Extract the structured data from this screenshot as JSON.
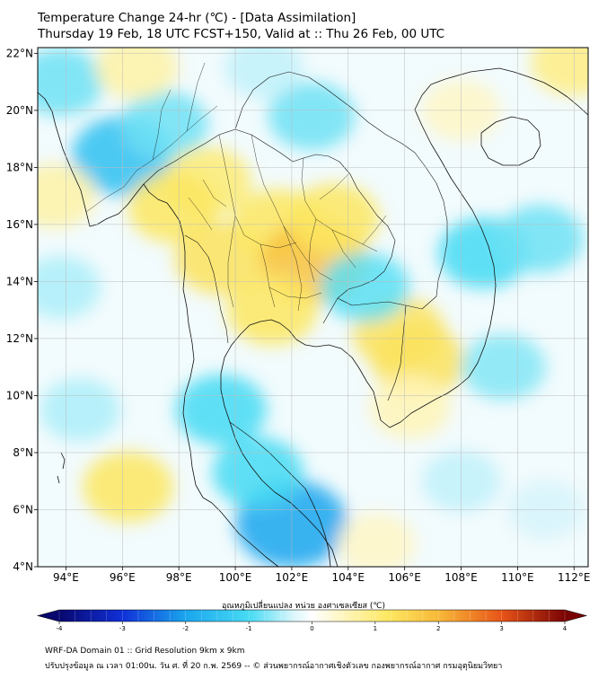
{
  "title": {
    "line1": "Temperature Change 24-hr (℃) - [Data Assimilation]",
    "line2": "Thursday 19 Feb, 18 UTC FCST+150, Valid at :: Thu 26 Feb, 00 UTC"
  },
  "map": {
    "lon_range": [
      93,
      112.5
    ],
    "lat_range": [
      4,
      22.2
    ],
    "lat_ticks": [
      {
        "value": 22,
        "label": "22°N"
      },
      {
        "value": 20,
        "label": "20°N"
      },
      {
        "value": 18,
        "label": "18°N"
      },
      {
        "value": 16,
        "label": "16°N"
      },
      {
        "value": 14,
        "label": "14°N"
      },
      {
        "value": 12,
        "label": "12°N"
      },
      {
        "value": 10,
        "label": "10°N"
      },
      {
        "value": 8,
        "label": "8°N"
      },
      {
        "value": 6,
        "label": "6°N"
      },
      {
        "value": 4,
        "label": "4°N"
      }
    ],
    "lon_ticks": [
      {
        "value": 94,
        "label": "94°E"
      },
      {
        "value": 96,
        "label": "96°E"
      },
      {
        "value": 98,
        "label": "98°E"
      },
      {
        "value": 100,
        "label": "100°E"
      },
      {
        "value": 102,
        "label": "102°E"
      },
      {
        "value": 104,
        "label": "104°E"
      },
      {
        "value": 106,
        "label": "106°E"
      },
      {
        "value": 108,
        "label": "108°E"
      },
      {
        "value": 110,
        "label": "110°E"
      },
      {
        "value": 112,
        "label": "112°E"
      }
    ],
    "anomalies": [
      {
        "lon": 96.0,
        "lat": 18.4,
        "value": -1.5
      },
      {
        "lon": 97.5,
        "lat": 19.5,
        "value": -0.8
      },
      {
        "lon": 93.8,
        "lat": 21.0,
        "value": -0.8
      },
      {
        "lon": 102.7,
        "lat": 19.8,
        "value": -0.8
      },
      {
        "lon": 101.0,
        "lat": 21.5,
        "value": -0.4
      },
      {
        "lon": 99.0,
        "lat": 17.5,
        "value": 0.9
      },
      {
        "lon": 97.8,
        "lat": 16.6,
        "value": 1.0
      },
      {
        "lon": 99.5,
        "lat": 14.8,
        "value": 1.1
      },
      {
        "lon": 101.5,
        "lat": 16.0,
        "value": 1.0
      },
      {
        "lon": 102.8,
        "lat": 14.7,
        "value": 1.8
      },
      {
        "lon": 103.5,
        "lat": 16.2,
        "value": 1.0
      },
      {
        "lon": 101.3,
        "lat": 13.0,
        "value": 1.0
      },
      {
        "lon": 105.8,
        "lat": 12.2,
        "value": 1.1
      },
      {
        "lon": 106.5,
        "lat": 11.2,
        "value": 1.1
      },
      {
        "lon": 106.2,
        "lat": 9.6,
        "value": 0.5
      },
      {
        "lon": 104.6,
        "lat": 13.8,
        "value": -0.9
      },
      {
        "lon": 108.8,
        "lat": 15.0,
        "value": -1.0
      },
      {
        "lon": 110.8,
        "lat": 15.5,
        "value": -0.8
      },
      {
        "lon": 109.5,
        "lat": 11.0,
        "value": -0.7
      },
      {
        "lon": 102.0,
        "lat": 5.5,
        "value": -2.0
      },
      {
        "lon": 100.8,
        "lat": 7.3,
        "value": -1.0
      },
      {
        "lon": 99.5,
        "lat": 9.5,
        "value": -1.0
      },
      {
        "lon": 96.2,
        "lat": 6.8,
        "value": 1.0
      },
      {
        "lon": 94.5,
        "lat": 9.5,
        "value": -0.5
      },
      {
        "lon": 108.0,
        "lat": 20.0,
        "value": 0.4
      },
      {
        "lon": 112.0,
        "lat": 21.7,
        "value": 0.8
      },
      {
        "lon": 96.5,
        "lat": 21.5,
        "value": 0.6
      },
      {
        "lon": 93.6,
        "lat": 17.0,
        "value": 0.6
      },
      {
        "lon": 93.8,
        "lat": 13.8,
        "value": -0.5
      },
      {
        "lon": 108.0,
        "lat": 7.0,
        "value": -0.4
      },
      {
        "lon": 111.0,
        "lat": 6.0,
        "value": -0.3
      },
      {
        "lon": 105.0,
        "lat": 4.8,
        "value": 0.4
      }
    ]
  },
  "colorbar": {
    "label": "อุณหภูมิเปลี่ยนแปลง หน่วย องศาเซลเซียส (℃)",
    "min": -4,
    "max": 4,
    "ticks": [
      {
        "value": -4,
        "label": "-4"
      },
      {
        "value": -3,
        "label": "-3"
      },
      {
        "value": -2,
        "label": "-2"
      },
      {
        "value": -1,
        "label": "-1"
      },
      {
        "value": 0,
        "label": "0"
      },
      {
        "value": 1,
        "label": "1"
      },
      {
        "value": 2,
        "label": "2"
      },
      {
        "value": 3,
        "label": "3"
      },
      {
        "value": 4,
        "label": "4"
      }
    ]
  },
  "footer": {
    "line1": "WRF-DA Domain 01 :: Grid Resolution 9km x 9km",
    "line2": "ปรับปรุงข้อมูล ณ เวลา 01:00น. วัน ศ. ที่ 20 ก.พ. 2569 -- © ส่วนพยากรณ์อากาศเชิงตัวเลข กองพยากรณ์อากาศ กรมอุตุนิยมวิทยา"
  }
}
